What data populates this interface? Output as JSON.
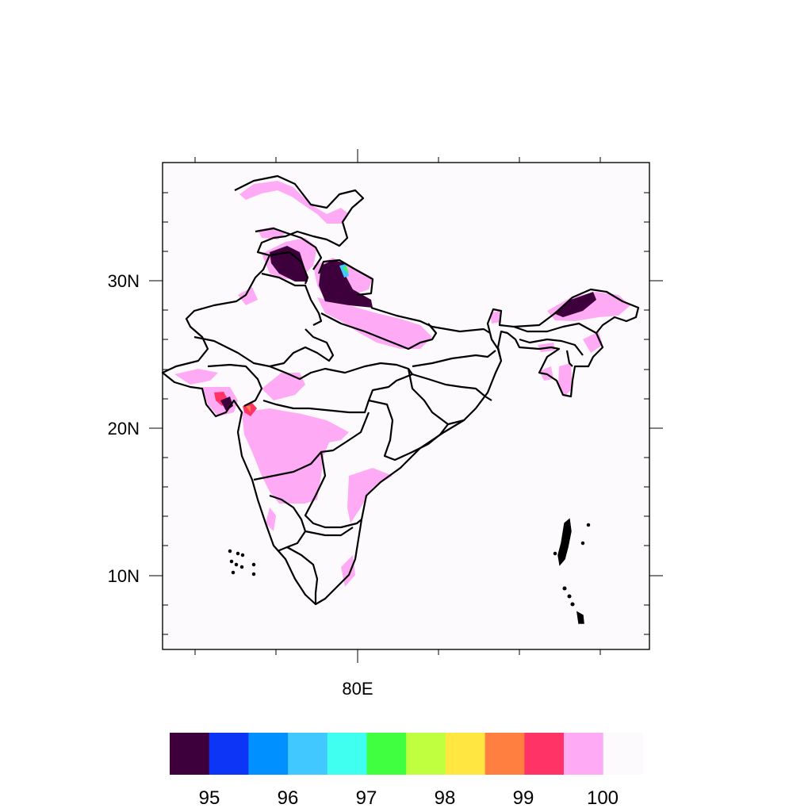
{
  "map": {
    "lat_ticks": [
      "30N",
      "20N",
      "10N"
    ],
    "lon_ticks": [
      "80E"
    ],
    "background_color": "#fdfafd"
  },
  "colorbar": {
    "colors": [
      "#3d003d",
      "#0c35f5",
      "#0090ff",
      "#40c8ff",
      "#40fff0",
      "#40ff40",
      "#bfff40",
      "#ffe640",
      "#ff7f40",
      "#ff3366",
      "#ffaaf5",
      "#fdfafd"
    ],
    "labels": [
      "95",
      "96",
      "97",
      "98",
      "99",
      "100"
    ]
  },
  "legend_colors": {
    "pink_100": "#ffaaf5",
    "dark_95": "#3d003d",
    "red_99": "#ff3366",
    "orange_99": "#ff7f40"
  }
}
